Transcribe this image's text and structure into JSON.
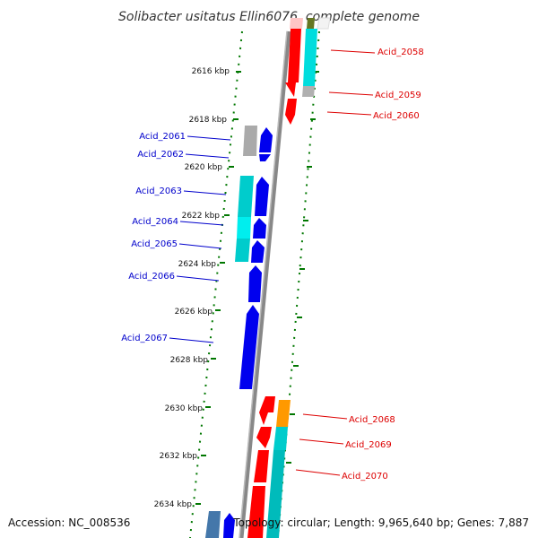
{
  "title": "Solibacter usitatus Ellin6076, complete genome",
  "footer": {
    "accession": "Accession: NC_008536",
    "topology": "Topology: circular; Length: 9,965,640 bp; Genes: 7,887"
  },
  "ruler_labels": [
    "2616 kbp",
    "2618 kbp",
    "2620 kbp",
    "2622 kbp",
    "2624 kbp",
    "2626 kbp",
    "2628 kbp",
    "2630 kbp",
    "2632 kbp",
    "2634 kbp"
  ],
  "genes_right": [
    "Acid_2058",
    "Acid_2059",
    "Acid_2060",
    "Acid_2068",
    "Acid_2069",
    "Acid_2070"
  ],
  "genes_left": [
    "Acid_2061",
    "Acid_2062",
    "Acid_2063",
    "Acid_2064",
    "Acid_2065",
    "Acid_2066",
    "Acid_2067"
  ],
  "colors": {
    "forward_gene": "#ff0000",
    "reverse_gene": "#0000ee",
    "cyan_feature": "#00cccc",
    "grey_feature": "#aaaaaa",
    "orange_feature": "#ff8800",
    "right_labels": "#dd0000",
    "left_labels": "#0000cc",
    "tick_green": "#007700"
  }
}
